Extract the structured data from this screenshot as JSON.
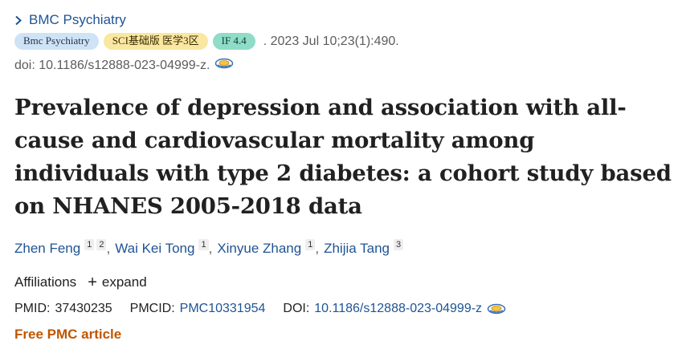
{
  "journal": {
    "name": "BMC Psychiatry"
  },
  "badges": {
    "journal": "Bmc Psychiatry",
    "sci": "SCI基础版 医学3区",
    "impact_factor": "IF 4.4"
  },
  "citation": ". 2023 Jul 10;23(1):490.",
  "doi_line": "doi: 10.1186/s12888-023-04999-z.",
  "title": "Prevalence of depression and association with all-cause and cardiovascular mortality among individuals with type 2 diabetes: a cohort study based on NHANES 2005-2018 data",
  "authors": [
    {
      "name": "Zhen Feng",
      "affiliations": [
        "1",
        "2"
      ]
    },
    {
      "name": "Wai Kei Tong",
      "affiliations": [
        "1"
      ]
    },
    {
      "name": "Xinyue Zhang",
      "affiliations": [
        "1"
      ]
    },
    {
      "name": "Zhijia Tang",
      "affiliations": [
        "3"
      ]
    }
  ],
  "author_separator": ",",
  "affiliations": {
    "label": "Affiliations",
    "expand_label": "expand",
    "expand_symbol": "+"
  },
  "identifiers": {
    "pmid_label": "PMID:",
    "pmid": "37430235",
    "pmcid_label": "PMCID:",
    "pmcid": "PMC10331954",
    "doi_label": "DOI:",
    "doi": "10.1186/s12888-023-04999-z"
  },
  "free_pmc": "Free PMC article",
  "colors": {
    "link": "#205493",
    "free_pmc": "#c05600",
    "badge_journal": "#cfe3f7",
    "badge_sci": "#f9e7a2",
    "badge_if": "#8fdcc8"
  },
  "icons": {
    "journal_chevron": "chevron-right-icon",
    "doi_resolver": "doi-lookup-icon"
  }
}
